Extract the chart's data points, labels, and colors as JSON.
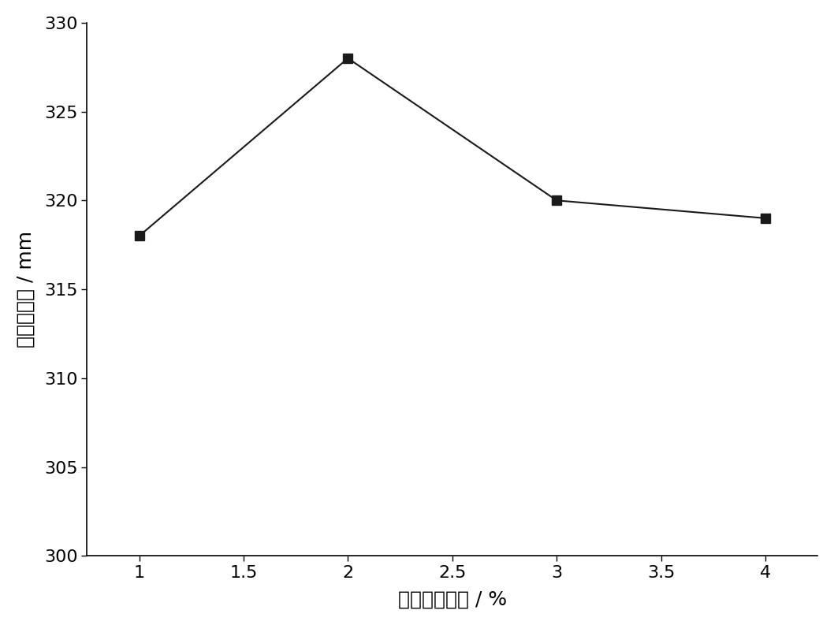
{
  "x": [
    1.0,
    2.0,
    3.0,
    4.0
  ],
  "y": [
    318,
    328,
    320,
    319
  ],
  "xlim": [
    0.75,
    4.25
  ],
  "ylim": [
    300,
    330
  ],
  "xticks": [
    1.0,
    1.5,
    2.0,
    2.5,
    3.0,
    3.5,
    4.0
  ],
  "yticks": [
    300,
    305,
    310,
    315,
    320,
    325,
    330
  ],
  "xlabel": "过硫酸铵渗量 / %",
  "ylabel": "净浆流动度 / mm",
  "line_color": "#1a1a1a",
  "marker": "s",
  "marker_size": 8,
  "marker_color": "#1a1a1a",
  "linewidth": 1.5,
  "background_color": "#ffffff",
  "tick_fontsize": 16,
  "label_fontsize": 18
}
